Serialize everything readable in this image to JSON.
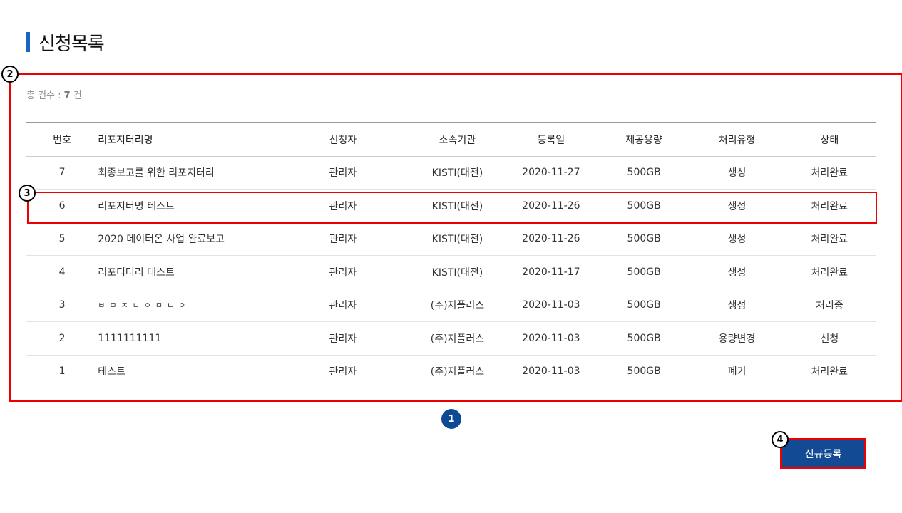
{
  "page_title": "신청목록",
  "total": {
    "label": "총 건수 :",
    "value": "7",
    "unit": "건"
  },
  "table": {
    "headers": [
      "번호",
      "리포지터리명",
      "신청자",
      "소속기관",
      "등록일",
      "제공용량",
      "처리유형",
      "상태"
    ],
    "rows": [
      [
        "7",
        "최종보고를 위한 리포지터리",
        "관리자",
        "KISTI(대전)",
        "2020-11-27",
        "500GB",
        "생성",
        "처리완료"
      ],
      [
        "6",
        "리포지터명 테스트",
        "관리자",
        "KISTI(대전)",
        "2020-11-26",
        "500GB",
        "생성",
        "처리완료"
      ],
      [
        "5",
        "2020 데이터온 사업 완료보고",
        "관리자",
        "KISTI(대전)",
        "2020-11-26",
        "500GB",
        "생성",
        "처리완료"
      ],
      [
        "4",
        "리포티터리 테스트",
        "관리자",
        "KISTI(대전)",
        "2020-11-17",
        "500GB",
        "생성",
        "처리완료"
      ],
      [
        "3",
        "ㅂㅁㅈㄴㅇㅁㄴㅇ",
        "관리자",
        "(주)지플러스",
        "2020-11-03",
        "500GB",
        "생성",
        "처리중"
      ],
      [
        "2",
        "1111111111",
        "관리자",
        "(주)지플러스",
        "2020-11-03",
        "500GB",
        "용량변경",
        "신청"
      ],
      [
        "1",
        "테스트",
        "관리자",
        "(주)지플러스",
        "2020-11-03",
        "500GB",
        "폐기",
        "처리완료"
      ]
    ]
  },
  "pagination": {
    "current": "1"
  },
  "new_button": "신규등록",
  "annotations": [
    "2",
    "3",
    "4"
  ],
  "colors": {
    "accent": "#124a94",
    "title_bar": "#1a63c7",
    "annotation": "#e00000"
  }
}
